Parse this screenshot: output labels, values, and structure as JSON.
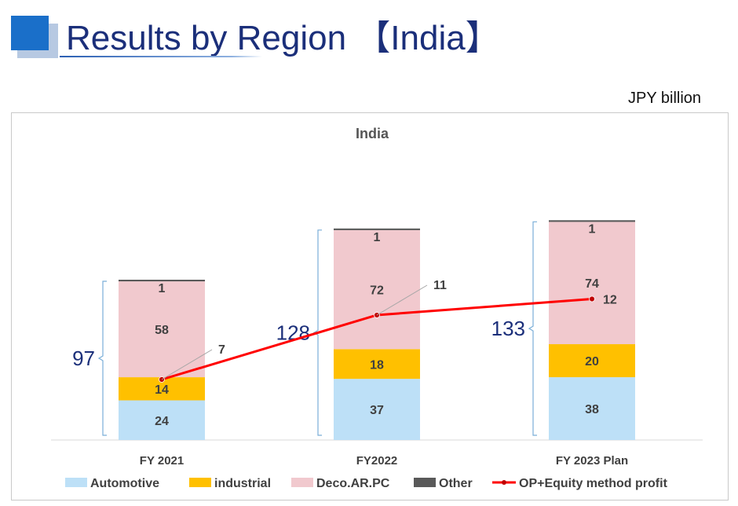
{
  "page": {
    "title": "Results by Region 【India】",
    "unit": "JPY  billion",
    "colors": {
      "title_text": "#1b2f7a",
      "title_square": "#1a6fc9",
      "total_text": "#1b2f7a",
      "bracket": "#7aaed8"
    }
  },
  "chart_data": {
    "type": "bar",
    "stacked": true,
    "title": "India",
    "categories": [
      "FY 2021",
      "FY2022",
      "FY 2023 Plan"
    ],
    "series": [
      {
        "name": "Automotive",
        "values": [
          24,
          37,
          38
        ],
        "color": "#bde0f7"
      },
      {
        "name": "industrial",
        "values": [
          14,
          18,
          20
        ],
        "color": "#ffc000"
      },
      {
        "name": "Deco.AR.PC",
        "values": [
          58,
          72,
          74
        ],
        "color": "#f1c9ce"
      },
      {
        "name": "Other",
        "values": [
          1,
          1,
          1
        ],
        "color": "#595959"
      }
    ],
    "line_series": {
      "name": "OP+Equity method profit",
      "values": [
        7,
        11,
        12
      ],
      "color": "#ff0000",
      "marker_color": "#c00000"
    },
    "totals": [
      "97",
      "128",
      "133"
    ],
    "legend_position": "bottom",
    "grid": false,
    "ylim": [
      0,
      155
    ]
  }
}
